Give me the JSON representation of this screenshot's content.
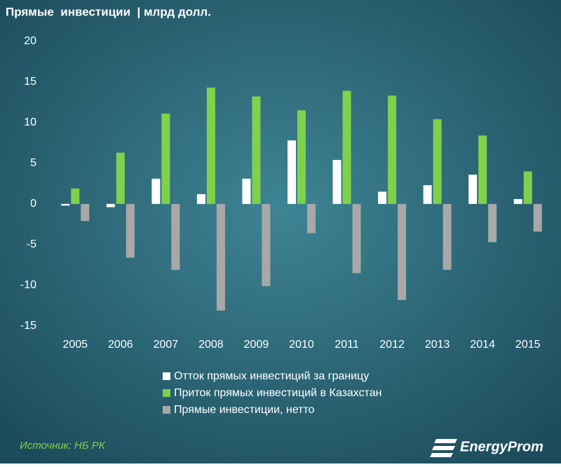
{
  "chart_data": {
    "type": "bar",
    "title": "Прямые  инвестиции  | млрд долл.",
    "categories": [
      "2005",
      "2006",
      "2007",
      "2008",
      "2009",
      "2010",
      "2011",
      "2012",
      "2013",
      "2014",
      "2015"
    ],
    "series": [
      {
        "name": "Отток прямых инвестиций за границу",
        "color": "#ffffff",
        "values": [
          -0.2,
          -0.4,
          3.1,
          1.2,
          3.1,
          7.8,
          5.4,
          1.5,
          2.3,
          3.6,
          0.6
        ]
      },
      {
        "name": "Приток прямых инвестиций в Казахстан",
        "color": "#7fd14c",
        "values": [
          1.9,
          6.3,
          11.1,
          14.3,
          13.2,
          11.5,
          13.9,
          13.3,
          10.4,
          8.4,
          4.0
        ]
      },
      {
        "name": "Прямые инвестиции, нетто",
        "color": "#a8a8a8",
        "values": [
          -2.1,
          -6.6,
          -8.1,
          -13.1,
          -10.1,
          -3.6,
          -8.5,
          -11.8,
          -8.1,
          -4.7,
          -3.4
        ]
      }
    ],
    "ylim": [
      -15,
      20
    ],
    "yticks": [
      -15,
      -10,
      -5,
      0,
      5,
      10,
      15,
      20
    ],
    "grid": false,
    "source": "Источник: НБ РК",
    "brand": "EnergyProm"
  }
}
